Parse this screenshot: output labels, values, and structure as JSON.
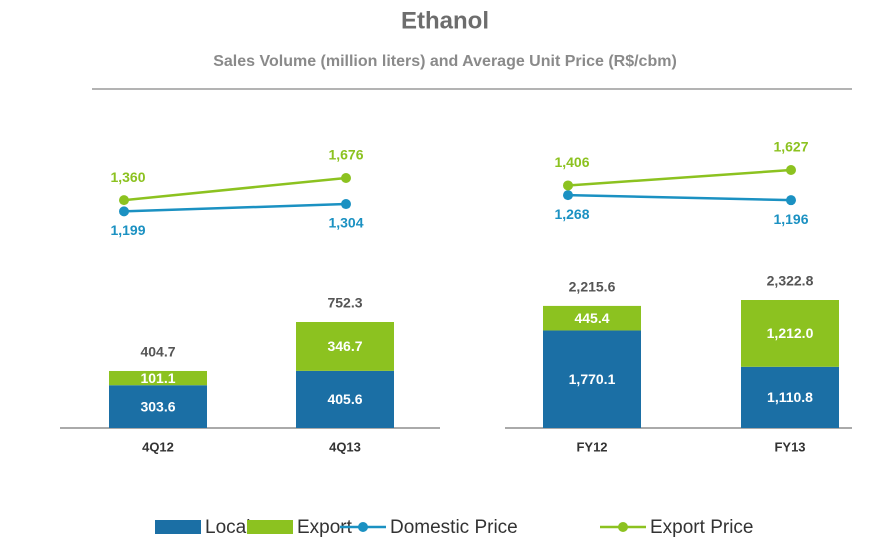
{
  "title": "Ethanol",
  "subtitle": "Sales Volume (million liters) and Average Unit Price (R$/cbm)",
  "chart_data": [
    {
      "type": "bar",
      "stacked": true,
      "categories": [
        "4Q12",
        "4Q13"
      ],
      "series": [
        {
          "name": "Local",
          "color": "#1b6fa5",
          "values": [
            303.6,
            405.6
          ]
        },
        {
          "name": "Export",
          "color": "#8cc220",
          "values": [
            101.1,
            346.7
          ]
        },
        {
          "name": "Domestic Price",
          "type": "line",
          "axis": "y2",
          "color": "#1b91c2",
          "values": [
            1199,
            1304
          ],
          "value_labels": [
            "1,199",
            "1,304"
          ]
        },
        {
          "name": "Export Price",
          "type": "line",
          "axis": "y2",
          "color": "#8cc220",
          "values": [
            1360,
            1676
          ],
          "value_labels": [
            "1,360",
            "1,676"
          ]
        }
      ],
      "totals": [
        404.7,
        752.3
      ]
    },
    {
      "type": "bar",
      "stacked": true,
      "categories": [
        "FY12",
        "FY13"
      ],
      "series": [
        {
          "name": "Local",
          "color": "#1b6fa5",
          "values": [
            1770.1,
            1110.8
          ],
          "value_labels": [
            "1,770.1",
            "1,110.8"
          ]
        },
        {
          "name": "Export",
          "color": "#8cc220",
          "values": [
            445.4,
            1212.0
          ],
          "value_labels": [
            "445.4",
            "1,212.0"
          ]
        },
        {
          "name": "Domestic Price",
          "type": "line",
          "axis": "y2",
          "color": "#1b91c2",
          "values": [
            1268,
            1196
          ],
          "value_labels": [
            "1,268",
            "1,196"
          ]
        },
        {
          "name": "Export Price",
          "type": "line",
          "axis": "y2",
          "color": "#8cc220",
          "values": [
            1406,
            1627
          ],
          "value_labels": [
            "1,406",
            "1,627"
          ]
        }
      ],
      "totals": [
        2215.6,
        2322.8
      ],
      "total_labels": [
        "2,215.6",
        "2,322.8"
      ]
    }
  ]
}
